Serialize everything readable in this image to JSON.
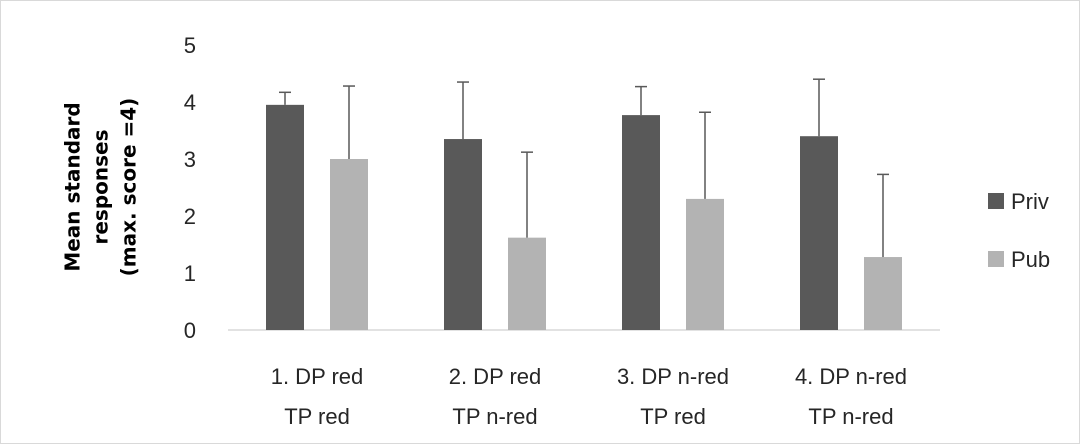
{
  "chart_data": {
    "type": "bar",
    "categories": [
      [
        "1. DP red",
        "TP red"
      ],
      [
        "2. DP red",
        "TP n-red"
      ],
      [
        "3. DP n-red",
        "TP red"
      ],
      [
        "4. DP n-red",
        "TP n-red"
      ]
    ],
    "series": [
      {
        "name": "Priv",
        "color": "#595959",
        "values": [
          3.95,
          3.35,
          3.77,
          3.4
        ],
        "error_plus": [
          0.22,
          1.0,
          0.5,
          1.0
        ]
      },
      {
        "name": "Pub",
        "color": "#b3b3b3",
        "values": [
          3.0,
          1.62,
          2.3,
          1.28
        ],
        "error_plus": [
          1.28,
          1.5,
          1.52,
          1.45
        ]
      }
    ],
    "ylabel_lines": [
      "Mean standard",
      "responses",
      "(max. score =4)"
    ],
    "ylim": [
      0,
      5
    ],
    "yticks": [
      "0",
      "1",
      "2",
      "3",
      "4",
      "5"
    ],
    "legend_position": "right",
    "grid": false
  }
}
